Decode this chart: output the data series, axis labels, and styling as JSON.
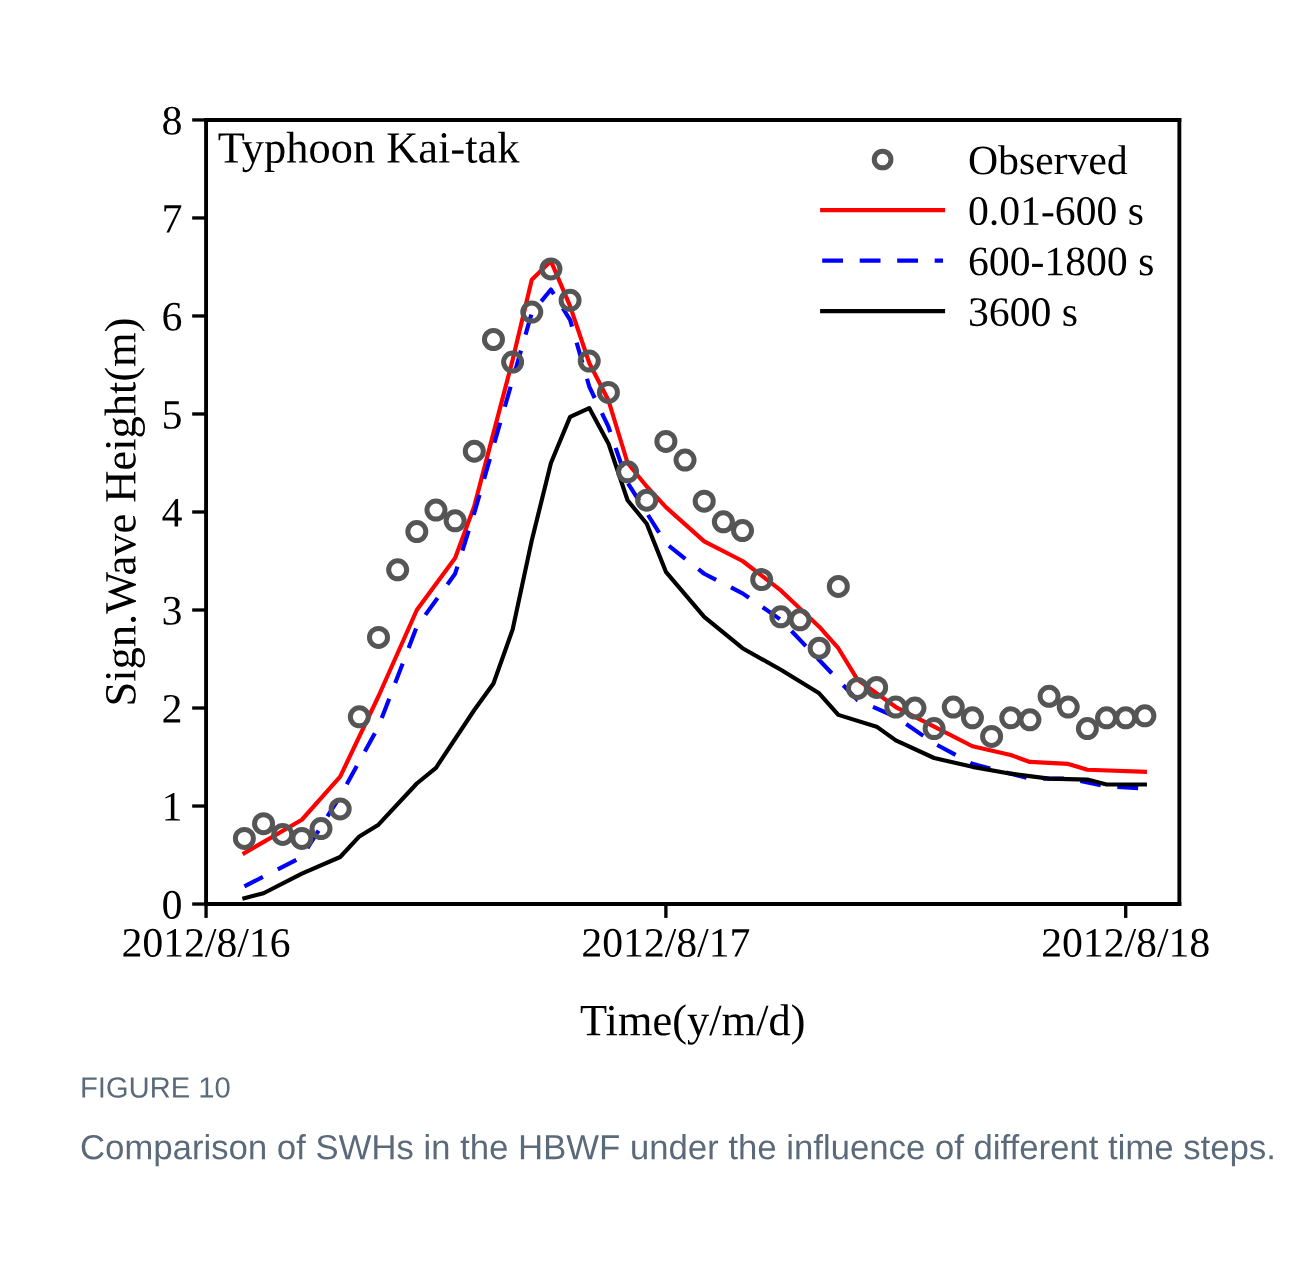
{
  "chart_data": {
    "type": "line",
    "xlabel": "Time(y/m/d)",
    "ylabel": "Sign.Wave Height(m)",
    "annotations": [
      "Typhoon Kai-tak",
      "FIGURE 10",
      "Comparison of SWHs in the HBWF under the influence of different time steps."
    ],
    "xlim": [
      "2012-08-16T00:00",
      "2012-08-18T02:48"
    ],
    "xticks": [
      {
        "value": "2012-08-16",
        "label": "2012/8/16"
      },
      {
        "value": "2012-08-17",
        "label": "2012/8/17"
      },
      {
        "value": "2012-08-18",
        "label": "2012/8/18"
      }
    ],
    "ylim": [
      0,
      8
    ],
    "yticks": [
      0,
      1,
      2,
      3,
      4,
      5,
      6,
      7,
      8
    ],
    "legend": "top right",
    "series": [
      {
        "name": "Observed",
        "type": "scatter",
        "marker": "circle",
        "color": "#555555",
        "x": [
          "2012-08-16T02:00",
          "2012-08-16T03:00",
          "2012-08-16T04:00",
          "2012-08-16T05:00",
          "2012-08-16T06:00",
          "2012-08-16T07:00",
          "2012-08-16T08:00",
          "2012-08-16T09:00",
          "2012-08-16T10:00",
          "2012-08-16T11:00",
          "2012-08-16T12:00",
          "2012-08-16T13:00",
          "2012-08-16T14:00",
          "2012-08-16T15:00",
          "2012-08-16T16:00",
          "2012-08-16T17:00",
          "2012-08-16T18:00",
          "2012-08-16T19:00",
          "2012-08-16T20:00",
          "2012-08-16T21:00",
          "2012-08-16T22:00",
          "2012-08-16T23:00",
          "2012-08-17T00:00",
          "2012-08-17T01:00",
          "2012-08-17T02:00",
          "2012-08-17T03:00",
          "2012-08-17T04:00",
          "2012-08-17T05:00",
          "2012-08-17T06:00",
          "2012-08-17T07:00",
          "2012-08-17T08:00",
          "2012-08-17T09:00",
          "2012-08-17T10:00",
          "2012-08-17T11:00",
          "2012-08-17T12:00",
          "2012-08-17T13:00",
          "2012-08-17T14:00",
          "2012-08-17T15:00",
          "2012-08-17T16:00",
          "2012-08-17T17:00",
          "2012-08-17T18:00",
          "2012-08-17T19:00",
          "2012-08-17T20:00",
          "2012-08-17T21:00",
          "2012-08-17T22:00",
          "2012-08-17T23:00",
          "2012-08-18T00:00",
          "2012-08-18T01:00"
        ],
        "values": [
          0.67,
          0.82,
          0.71,
          0.67,
          0.77,
          0.97,
          1.91,
          2.72,
          3.41,
          3.8,
          4.02,
          3.91,
          4.62,
          5.76,
          5.53,
          6.04,
          6.48,
          6.16,
          5.54,
          5.22,
          4.41,
          4.12,
          4.72,
          4.53,
          4.11,
          3.9,
          3.81,
          3.31,
          2.93,
          2.9,
          2.61,
          3.24,
          2.2,
          2.21,
          2.01,
          2.0,
          1.79,
          2.01,
          1.9,
          1.71,
          1.9,
          1.88,
          2.12,
          2.01,
          1.79,
          1.9,
          1.9,
          1.92
        ]
      },
      {
        "name": "0.01-600 s",
        "line_style": "solid",
        "color": "#ff0000",
        "x": [
          "2012-08-16T02:00",
          "2012-08-16T05:00",
          "2012-08-16T07:00",
          "2012-08-16T09:00",
          "2012-08-16T11:00",
          "2012-08-16T13:00",
          "2012-08-16T14:00",
          "2012-08-16T16:00",
          "2012-08-16T17:00",
          "2012-08-16T18:00",
          "2012-08-16T19:00",
          "2012-08-16T20:00",
          "2012-08-16T21:00",
          "2012-08-16T22:00",
          "2012-08-16T23:00",
          "2012-08-17T00:00",
          "2012-08-17T02:00",
          "2012-08-17T04:00",
          "2012-08-17T06:00",
          "2012-08-17T08:00",
          "2012-08-17T09:00",
          "2012-08-17T10:00",
          "2012-08-17T12:00",
          "2012-08-17T14:00",
          "2012-08-17T16:00",
          "2012-08-17T18:00",
          "2012-08-17T19:00",
          "2012-08-17T21:00",
          "2012-08-17T22:00",
          "2012-08-18T01:00"
        ],
        "values": [
          0.52,
          0.86,
          1.3,
          2.12,
          3.0,
          3.53,
          4.06,
          5.55,
          6.37,
          6.56,
          6.1,
          5.52,
          5.14,
          4.5,
          4.26,
          4.05,
          3.7,
          3.5,
          3.2,
          2.83,
          2.61,
          2.29,
          2.01,
          1.81,
          1.61,
          1.52,
          1.45,
          1.43,
          1.37,
          1.35
        ]
      },
      {
        "name": "600-1800 s",
        "line_style": "dashed",
        "color": "#0000ff",
        "x": [
          "2012-08-16T02:00",
          "2012-08-16T05:00",
          "2012-08-16T07:00",
          "2012-08-16T09:00",
          "2012-08-16T11:00",
          "2012-08-16T13:00",
          "2012-08-16T14:00",
          "2012-08-16T16:00",
          "2012-08-16T17:00",
          "2012-08-16T18:00",
          "2012-08-16T19:00",
          "2012-08-16T20:00",
          "2012-08-16T21:00",
          "2012-08-16T22:00",
          "2012-08-17T00:00",
          "2012-08-17T02:00",
          "2012-08-17T04:00",
          "2012-08-17T06:00",
          "2012-08-17T08:00",
          "2012-08-17T10:00",
          "2012-08-17T12:00",
          "2012-08-17T14:00",
          "2012-08-17T16:00",
          "2012-08-17T19:00",
          "2012-08-17T21:00",
          "2012-08-17T23:00",
          "2012-08-18T01:00"
        ],
        "values": [
          0.18,
          0.48,
          1.1,
          1.81,
          2.83,
          3.37,
          3.99,
          5.35,
          6.03,
          6.27,
          5.96,
          5.28,
          4.87,
          4.3,
          3.68,
          3.37,
          3.17,
          2.9,
          2.49,
          2.08,
          1.91,
          1.64,
          1.43,
          1.28,
          1.28,
          1.2,
          1.18
        ]
      },
      {
        "name": "3600 s",
        "line_style": "solid",
        "color": "#000000",
        "x": [
          "2012-08-16T02:00",
          "2012-08-16T03:00",
          "2012-08-16T05:00",
          "2012-08-16T07:00",
          "2012-08-16T08:00",
          "2012-08-16T09:00",
          "2012-08-16T11:00",
          "2012-08-16T12:00",
          "2012-08-16T14:00",
          "2012-08-16T15:00",
          "2012-08-16T16:00",
          "2012-08-16T17:00",
          "2012-08-16T18:00",
          "2012-08-16T19:00",
          "2012-08-16T20:00",
          "2012-08-16T21:00",
          "2012-08-16T22:00",
          "2012-08-16T23:00",
          "2012-08-17T00:00",
          "2012-08-17T02:00",
          "2012-08-17T04:00",
          "2012-08-17T06:00",
          "2012-08-17T08:00",
          "2012-08-17T09:00",
          "2012-08-17T11:00",
          "2012-08-17T12:00",
          "2012-08-17T14:00",
          "2012-08-17T16:00",
          "2012-08-17T18:00",
          "2012-08-17T20:00",
          "2012-08-17T22:00",
          "2012-08-17T23:00",
          "2012-08-18T01:00"
        ],
        "values": [
          0.06,
          0.11,
          0.31,
          0.48,
          0.69,
          0.81,
          1.23,
          1.39,
          1.98,
          2.25,
          2.8,
          3.71,
          4.5,
          4.97,
          5.06,
          4.7,
          4.12,
          3.88,
          3.39,
          2.93,
          2.61,
          2.39,
          2.15,
          1.93,
          1.81,
          1.67,
          1.49,
          1.4,
          1.33,
          1.28,
          1.27,
          1.22,
          1.22
        ]
      }
    ]
  }
}
